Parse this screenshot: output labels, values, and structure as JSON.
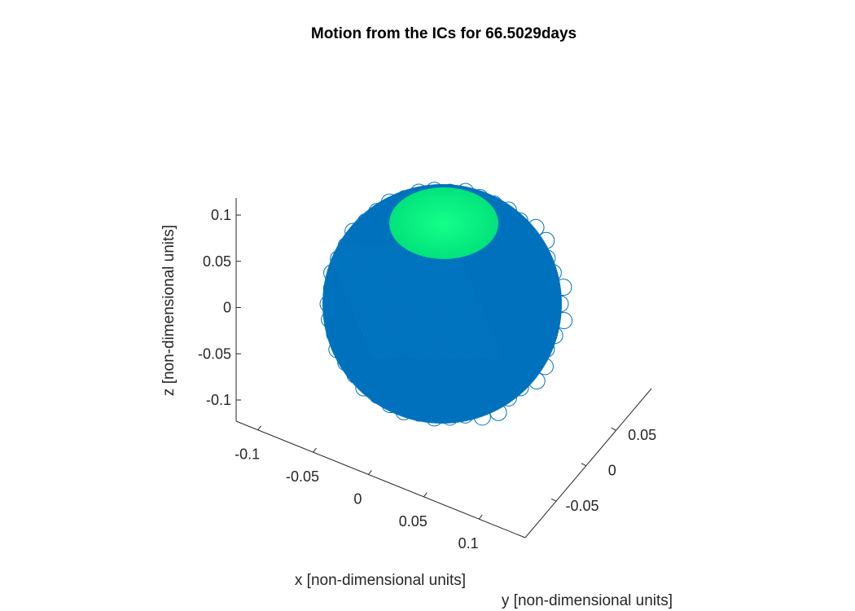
{
  "chart_data": {
    "type": "line",
    "title": "Motion from the ICs for 66.5029days",
    "xlabel": "x [non-dimensional units]",
    "ylabel": "y [non-dimensional units]",
    "zlabel": "z [non-dimensional units]",
    "xticks": [
      {
        "value": -0.1,
        "label": "-0.1"
      },
      {
        "value": -0.05,
        "label": "-0.05"
      },
      {
        "value": 0,
        "label": "0"
      },
      {
        "value": 0.05,
        "label": "0.05"
      },
      {
        "value": 0.1,
        "label": "0.1"
      }
    ],
    "yticks": [
      {
        "value": -0.05,
        "label": "-0.05"
      },
      {
        "value": 0,
        "label": "0"
      },
      {
        "value": 0.05,
        "label": "0.05"
      }
    ],
    "zticks": [
      {
        "value": -0.1,
        "label": "-0.1"
      },
      {
        "value": -0.05,
        "label": "-0.05"
      },
      {
        "value": 0,
        "label": "0"
      },
      {
        "value": 0.05,
        "label": "0.05"
      },
      {
        "value": 0.1,
        "label": "0.1"
      }
    ],
    "xlim": [
      -0.125,
      0.12
    ],
    "ylim": [
      -0.1,
      0.1
    ],
    "zlim": [
      -0.12,
      0.12
    ],
    "grid": false,
    "series": [
      {
        "color": "#0072BD",
        "shape": "sphere",
        "radius": 0.12
      },
      {
        "color": "#00F07E",
        "shape": "cap",
        "position": "top"
      }
    ]
  }
}
